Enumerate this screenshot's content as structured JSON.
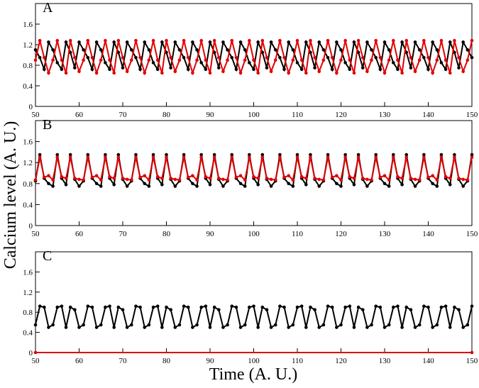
{
  "chart_data": [
    {
      "type": "line",
      "label": "A",
      "x": [
        50,
        51,
        52,
        53,
        54,
        55,
        56,
        57,
        58,
        59,
        60,
        61,
        62,
        63,
        64,
        65,
        66,
        67,
        68,
        69,
        70,
        71,
        72,
        73,
        74,
        75,
        76,
        77,
        78,
        79,
        80,
        81,
        82,
        83,
        84,
        85,
        86,
        87,
        88,
        89,
        90,
        91,
        92,
        93,
        94,
        95,
        96,
        97,
        98,
        99,
        100,
        101,
        102,
        103,
        104,
        105,
        106,
        107,
        108,
        109,
        110,
        111,
        112,
        113,
        114,
        115,
        116,
        117,
        118,
        119,
        120,
        121,
        122,
        123,
        124,
        125,
        126,
        127,
        128,
        129,
        130,
        131,
        132,
        133,
        134,
        135,
        136,
        137,
        138,
        139,
        140,
        141,
        142,
        143,
        144,
        145,
        146,
        147,
        148,
        149,
        150
      ],
      "series": [
        {
          "color": "#000000",
          "values": [
            1.1,
            0.95,
            0.72,
            1.25,
            1.1,
            0.85,
            0.72,
            1.25,
            1.05,
            0.75,
            1.25,
            1.1,
            0.95,
            0.72,
            1.25,
            1.1,
            0.85,
            0.72,
            1.25,
            1.05,
            0.75,
            1.25,
            1.1,
            0.95,
            0.72,
            1.25,
            1.1,
            0.85,
            0.72,
            1.25,
            1.05,
            0.75,
            1.25,
            1.1,
            0.95,
            0.72,
            1.25,
            1.1,
            0.85,
            0.72,
            1.25,
            1.05,
            0.75,
            1.25,
            1.1,
            0.95,
            0.72,
            1.25,
            1.1,
            0.85,
            0.72,
            1.25,
            1.05,
            0.75,
            1.25,
            1.1,
            0.95,
            0.72,
            1.25,
            1.1,
            0.85,
            0.72,
            1.25,
            1.05,
            0.75,
            1.25,
            1.1,
            0.95,
            0.72,
            1.25,
            1.1,
            0.85,
            0.72,
            1.25,
            1.05,
            0.75,
            1.25,
            1.1,
            0.95,
            0.72,
            1.25,
            1.1,
            0.85,
            0.72,
            1.25,
            1.05,
            0.75,
            1.25,
            1.1,
            0.95,
            0.72,
            1.25,
            1.1,
            0.85,
            0.72,
            1.25,
            1.05,
            0.75,
            1.25,
            1.1,
            0.95
          ]
        },
        {
          "color": "#e00000",
          "values": [
            0.9,
            1.28,
            0.95,
            0.65,
            0.9,
            1.28,
            0.9,
            0.65,
            1.28,
            0.95,
            0.68,
            0.9,
            1.28,
            0.95,
            0.65,
            0.9,
            1.28,
            0.9,
            0.65,
            1.28,
            0.95,
            0.68,
            0.9,
            1.28,
            0.95,
            0.65,
            0.9,
            1.28,
            0.9,
            0.65,
            1.28,
            0.95,
            0.68,
            0.9,
            1.28,
            0.95,
            0.65,
            0.9,
            1.28,
            0.9,
            0.65,
            1.28,
            0.95,
            0.68,
            0.9,
            1.28,
            0.95,
            0.65,
            0.9,
            1.28,
            0.9,
            0.65,
            1.28,
            0.95,
            0.68,
            0.9,
            1.28,
            0.95,
            0.65,
            0.9,
            1.28,
            0.9,
            0.65,
            1.28,
            0.95,
            0.68,
            0.9,
            1.28,
            0.95,
            0.65,
            0.9,
            1.28,
            0.9,
            0.65,
            1.28,
            0.95,
            0.68,
            0.9,
            1.28,
            0.95,
            0.65,
            0.9,
            1.28,
            0.9,
            0.65,
            1.28,
            0.95,
            0.68,
            0.9,
            1.28,
            0.95,
            0.65,
            0.9,
            1.28,
            0.9,
            0.65,
            1.28,
            0.95,
            0.68,
            0.9,
            1.28
          ]
        }
      ],
      "xlim": [
        50,
        150
      ],
      "xticks": [
        50,
        60,
        70,
        80,
        90,
        100,
        110,
        120,
        130,
        140,
        150
      ],
      "ylim": [
        0,
        2
      ],
      "yticks": [
        0,
        0.4,
        0.8,
        1.2,
        1.6
      ]
    },
    {
      "type": "line",
      "label": "B",
      "ylabel": "Calcium level (A. U.)",
      "x": [
        50,
        51,
        52,
        53,
        54,
        55,
        56,
        57,
        58,
        59,
        60,
        61,
        62,
        63,
        64,
        65,
        66,
        67,
        68,
        69,
        70,
        71,
        72,
        73,
        74,
        75,
        76,
        77,
        78,
        79,
        80,
        81,
        82,
        83,
        84,
        85,
        86,
        87,
        88,
        89,
        90,
        91,
        92,
        93,
        94,
        95,
        96,
        97,
        98,
        99,
        100,
        101,
        102,
        103,
        104,
        105,
        106,
        107,
        108,
        109,
        110,
        111,
        112,
        113,
        114,
        115,
        116,
        117,
        118,
        119,
        120,
        121,
        122,
        123,
        124,
        125,
        126,
        127,
        128,
        129,
        130,
        131,
        132,
        133,
        134,
        135,
        136,
        137,
        138,
        139,
        140,
        141,
        142,
        143,
        144,
        145,
        146,
        147,
        148,
        149,
        150
      ],
      "series": [
        {
          "color": "#000000",
          "values": [
            0.85,
            1.35,
            0.9,
            0.8,
            0.75,
            1.35,
            0.9,
            0.78,
            1.35,
            0.88,
            0.75,
            0.85,
            1.35,
            0.9,
            0.8,
            0.75,
            1.35,
            0.9,
            0.78,
            1.35,
            0.88,
            0.75,
            0.85,
            1.35,
            0.9,
            0.8,
            0.75,
            1.35,
            0.9,
            0.78,
            1.35,
            0.88,
            0.75,
            0.85,
            1.35,
            0.9,
            0.8,
            0.75,
            1.35,
            0.9,
            0.78,
            1.35,
            0.88,
            0.75,
            0.85,
            1.35,
            0.9,
            0.8,
            0.75,
            1.35,
            0.9,
            0.78,
            1.35,
            0.88,
            0.75,
            0.85,
            1.35,
            0.9,
            0.8,
            0.75,
            1.35,
            0.9,
            0.78,
            1.35,
            0.88,
            0.75,
            0.85,
            1.35,
            0.9,
            0.8,
            0.75,
            1.35,
            0.9,
            0.78,
            1.35,
            0.88,
            0.75,
            0.85,
            1.35,
            0.9,
            0.8,
            0.75,
            1.35,
            0.9,
            0.78,
            1.35,
            0.88,
            0.75,
            0.85,
            1.35,
            0.9,
            0.8,
            0.75,
            1.35,
            0.9,
            0.78,
            1.35,
            0.88,
            0.75,
            0.85,
            1.35
          ]
        },
        {
          "color": "#e00000",
          "values": [
            0.87,
            1.3,
            0.92,
            0.95,
            0.87,
            1.3,
            0.93,
            0.9,
            1.3,
            0.9,
            0.88,
            0.87,
            1.3,
            0.92,
            0.95,
            0.87,
            1.3,
            0.93,
            0.9,
            1.3,
            0.9,
            0.88,
            0.87,
            1.3,
            0.92,
            0.95,
            0.87,
            1.3,
            0.93,
            0.9,
            1.3,
            0.9,
            0.88,
            0.87,
            1.3,
            0.92,
            0.95,
            0.87,
            1.3,
            0.93,
            0.9,
            1.3,
            0.9,
            0.88,
            0.87,
            1.3,
            0.92,
            0.95,
            0.87,
            1.3,
            0.93,
            0.9,
            1.3,
            0.9,
            0.88,
            0.87,
            1.3,
            0.92,
            0.95,
            0.87,
            1.3,
            0.93,
            0.9,
            1.3,
            0.9,
            0.88,
            0.87,
            1.3,
            0.92,
            0.95,
            0.87,
            1.3,
            0.93,
            0.9,
            1.3,
            0.9,
            0.88,
            0.87,
            1.3,
            0.92,
            0.95,
            0.87,
            1.3,
            0.93,
            0.9,
            1.3,
            0.9,
            0.88,
            0.87,
            1.3,
            0.92,
            0.95,
            0.87,
            1.3,
            0.93,
            0.9,
            1.3,
            0.9,
            0.88,
            0.87,
            1.3
          ]
        }
      ],
      "xlim": [
        50,
        150
      ],
      "xticks": [
        50,
        60,
        70,
        80,
        90,
        100,
        110,
        120,
        130,
        140,
        150
      ],
      "ylim": [
        0,
        2
      ],
      "yticks": [
        0,
        0.4,
        0.8,
        1.2,
        1.6
      ]
    },
    {
      "type": "line",
      "label": "C",
      "xlabel": "Time (A. U.)",
      "x": [
        50,
        51,
        52,
        53,
        54,
        55,
        56,
        57,
        58,
        59,
        60,
        61,
        62,
        63,
        64,
        65,
        66,
        67,
        68,
        69,
        70,
        71,
        72,
        73,
        74,
        75,
        76,
        77,
        78,
        79,
        80,
        81,
        82,
        83,
        84,
        85,
        86,
        87,
        88,
        89,
        90,
        91,
        92,
        93,
        94,
        95,
        96,
        97,
        98,
        99,
        100,
        101,
        102,
        103,
        104,
        105,
        106,
        107,
        108,
        109,
        110,
        111,
        112,
        113,
        114,
        115,
        116,
        117,
        118,
        119,
        120,
        121,
        122,
        123,
        124,
        125,
        126,
        127,
        128,
        129,
        130,
        131,
        132,
        133,
        134,
        135,
        136,
        137,
        138,
        139,
        140,
        141,
        142,
        143,
        144,
        145,
        146,
        147,
        148,
        149,
        150
      ],
      "series": [
        {
          "color": "#000000",
          "values": [
            0.55,
            0.92,
            0.9,
            0.5,
            0.55,
            0.9,
            0.92,
            0.5,
            0.9,
            0.85,
            0.5,
            0.55,
            0.92,
            0.9,
            0.5,
            0.55,
            0.9,
            0.92,
            0.5,
            0.9,
            0.85,
            0.5,
            0.55,
            0.92,
            0.9,
            0.5,
            0.55,
            0.9,
            0.92,
            0.5,
            0.9,
            0.85,
            0.5,
            0.55,
            0.92,
            0.9,
            0.5,
            0.55,
            0.9,
            0.92,
            0.5,
            0.9,
            0.85,
            0.5,
            0.55,
            0.92,
            0.9,
            0.5,
            0.55,
            0.9,
            0.92,
            0.5,
            0.9,
            0.85,
            0.5,
            0.55,
            0.92,
            0.9,
            0.5,
            0.55,
            0.9,
            0.92,
            0.5,
            0.9,
            0.85,
            0.5,
            0.55,
            0.92,
            0.9,
            0.5,
            0.55,
            0.9,
            0.92,
            0.5,
            0.9,
            0.85,
            0.5,
            0.55,
            0.92,
            0.9,
            0.5,
            0.55,
            0.9,
            0.92,
            0.5,
            0.9,
            0.85,
            0.5,
            0.55,
            0.92,
            0.9,
            0.5,
            0.55,
            0.9,
            0.92,
            0.5,
            0.9,
            0.85,
            0.5,
            0.55,
            0.92
          ]
        },
        {
          "color": "#e00000",
          "x": [
            50,
            150
          ],
          "values": [
            0,
            0
          ]
        }
      ],
      "xlim": [
        50,
        150
      ],
      "xticks": [
        50,
        60,
        70,
        80,
        90,
        100,
        110,
        120,
        130,
        140,
        150
      ],
      "ylim": [
        0,
        2
      ],
      "yticks": [
        0,
        0.4,
        0.8,
        1.2,
        1.6
      ]
    }
  ]
}
